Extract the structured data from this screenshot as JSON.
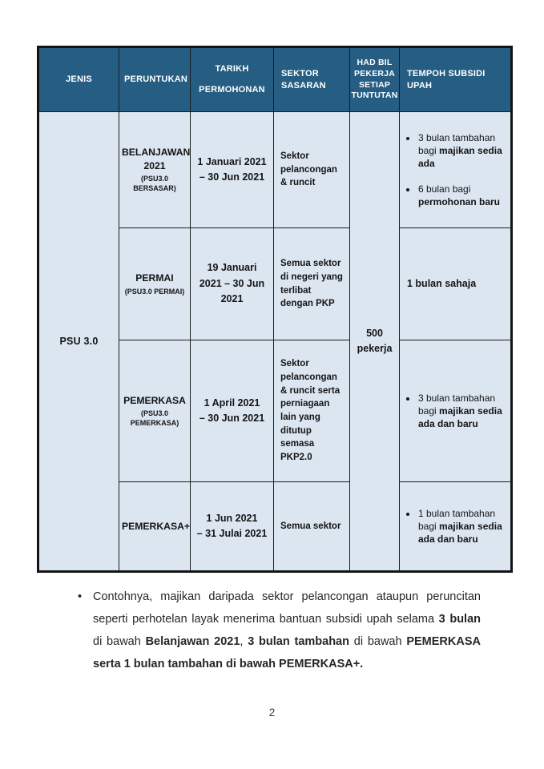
{
  "colors": {
    "header_bg": "#265d82",
    "header_text": "#ffffff",
    "cell_bg": "#dce6f1",
    "border": "#1c1c1c"
  },
  "table": {
    "headers": [
      "JENIS",
      "PERUNTUKAN",
      "TARIKH PERMOHONAN",
      "SEKTOR SASARAN",
      "HAD BIL PEKERJA SETIAP TUNTUTAN",
      "TEMPOH SUBSIDI UPAH"
    ],
    "jenis": "PSU 3.0",
    "had_bil_pekerja": "500 pekerja",
    "rows": [
      {
        "peruntukan": "BELANJAWAN 2021",
        "peruntukan_sub": "(PSU3.0\nBERSASAR)",
        "tarikh": "1 Januari 2021\n– 30 Jun 2021",
        "sektor": "Sektor pelancongan & runcit",
        "tempoh": {
          "bullets": true,
          "items": [
            [
              {
                "t": "3 bulan tambahan bagi ",
                "b": false
              },
              {
                "t": "majikan sedia ada",
                "b": true
              }
            ],
            [
              {
                "t": "6 bulan bagi ",
                "b": false
              },
              {
                "t": "permohonan baru",
                "b": true
              }
            ]
          ]
        }
      },
      {
        "peruntukan": "PERMAI",
        "peruntukan_sub": "(PSU3.0 PERMAI)",
        "tarikh": "19 Januari\n2021 – 30 Jun\n2021",
        "sektor": "Semua sektor di negeri yang terlibat dengan PKP",
        "tempoh": {
          "bullets": false,
          "items": [
            [
              {
                "t": "1 bulan sahaja",
                "b": true
              }
            ]
          ]
        }
      },
      {
        "peruntukan": "PEMERKASA",
        "peruntukan_sub": "(PSU3.0\nPEMERKASA)",
        "tarikh": "1 April 2021\n– 30 Jun 2021",
        "sektor": "Sektor pelancongan & runcit serta perniagaan lain yang ditutup semasa PKP2.0",
        "tempoh": {
          "bullets": true,
          "items": [
            [
              {
                "t": "3 bulan tambahan bagi ",
                "b": false
              },
              {
                "t": "majikan sedia ada dan baru",
                "b": true
              }
            ]
          ]
        }
      },
      {
        "peruntukan": "PEMERKASA+",
        "peruntukan_sub": "",
        "tarikh": "1 Jun 2021\n– 31 Julai 2021",
        "sektor": "Semua sektor",
        "tempoh": {
          "bullets": true,
          "items": [
            [
              {
                "t": "1 bulan tambahan bagi ",
                "b": false
              },
              {
                "t": "majikan sedia ada dan baru",
                "b": true
              }
            ]
          ]
        }
      }
    ]
  },
  "note": {
    "bullet": "•",
    "runs": [
      {
        "t": "Contohnya, majikan daripada sektor pelancongan ataupun peruncitan seperti perhotelan layak menerima bantuan subsidi upah selama ",
        "b": false
      },
      {
        "t": "3 bulan",
        "b": true
      },
      {
        "t": " di bawah ",
        "b": false
      },
      {
        "t": "Belanjawan 2021",
        "b": true
      },
      {
        "t": ", ",
        "b": false
      },
      {
        "t": "3 bulan tambahan",
        "b": true
      },
      {
        "t": " di bawah ",
        "b": false
      },
      {
        "t": "PEMERKASA serta 1 bulan tambahan di bawah PEMERKASA+.",
        "b": true
      }
    ]
  },
  "page_number": "2"
}
